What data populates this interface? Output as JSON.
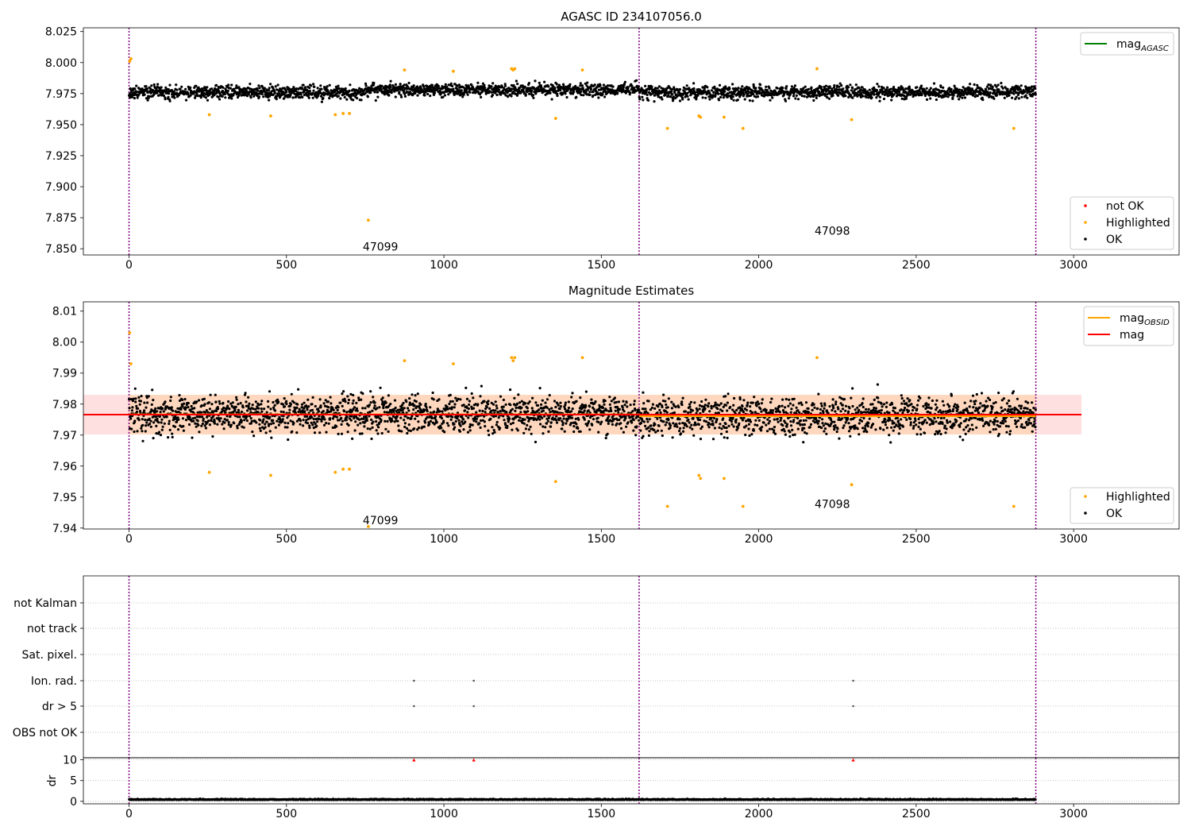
{
  "chart_data": [
    {
      "type": "scatter",
      "title": "AGASC ID 234107056.0",
      "xlim": [
        -145,
        3335
      ],
      "ylim": [
        7.845,
        8.028
      ],
      "x_ticks": [
        0,
        500,
        1000,
        1500,
        2000,
        2500,
        3000
      ],
      "y_ticks": [
        7.85,
        7.875,
        7.9,
        7.925,
        7.95,
        7.975,
        8.0,
        8.025
      ],
      "y_tick_labels": [
        "7.850",
        "7.875",
        "7.900",
        "7.925",
        "7.950",
        "7.975",
        "8.000",
        "8.025"
      ],
      "grid": false,
      "vlines": [
        0,
        1620,
        2880
      ],
      "obsid_labels": [
        {
          "text": "47099",
          "x": 750,
          "y": 7.851
        },
        {
          "text": "47098",
          "x": 2185,
          "y": 7.864
        }
      ],
      "legend_top": {
        "position": "top-right",
        "entries": [
          {
            "label": "mag",
            "sub": "AGASC",
            "color": "#008000",
            "kind": "line"
          }
        ]
      },
      "legend_bottom": {
        "position": "bottom-right",
        "entries": [
          {
            "label": "not OK",
            "color": "#ff0000",
            "kind": "point"
          },
          {
            "label": "Highlighted",
            "color": "#ffa500",
            "kind": "point"
          },
          {
            "label": "OK",
            "color": "#000000",
            "kind": "point"
          }
        ]
      },
      "series": [
        {
          "name": "OK",
          "color": "#000000",
          "points": "dense black point cloud near 7.976 (spread about 7.963–7.993) over x = 0–2880",
          "segments": [
            [
              0,
              760,
              7.976
            ],
            [
              760,
              1620,
              7.978
            ],
            [
              1620,
              2880,
              7.976
            ]
          ]
        },
        {
          "name": "Highlighted",
          "color": "#ffa500",
          "x": [
            2,
            6,
            255,
            450,
            655,
            680,
            700,
            760,
            875,
            1030,
            1215,
            1220,
            1225,
            1355,
            1440,
            1710,
            1810,
            1815,
            1890,
            1950,
            2185,
            2295,
            2810
          ],
          "y": [
            8.001,
            8.003,
            7.958,
            7.957,
            7.958,
            7.959,
            7.959,
            7.873,
            7.994,
            7.993,
            7.995,
            7.994,
            7.995,
            7.955,
            7.994,
            7.947,
            7.957,
            7.956,
            7.956,
            7.947,
            7.995,
            7.954,
            7.947
          ]
        }
      ]
    },
    {
      "type": "scatter",
      "title": "Magnitude Estimates",
      "xlim": [
        -145,
        3335
      ],
      "ylim": [
        7.9397,
        8.013
      ],
      "x_ticks": [
        0,
        500,
        1000,
        1500,
        2000,
        2500,
        3000
      ],
      "y_ticks": [
        7.94,
        7.95,
        7.96,
        7.97,
        7.98,
        7.99,
        8.0,
        8.01
      ],
      "y_tick_labels": [
        "7.94",
        "7.95",
        "7.96",
        "7.97",
        "7.98",
        "7.99",
        "8.00",
        "8.01"
      ],
      "grid": false,
      "vlines": [
        0,
        1620,
        2880
      ],
      "obsid_labels": [
        {
          "text": "47099",
          "x": 750,
          "y": 7.9423
        },
        {
          "text": "47098",
          "x": 2185,
          "y": 7.9475
        }
      ],
      "mag_line": {
        "label": "mag",
        "value": 7.9766,
        "band": [
          7.9702,
          7.983
        ],
        "x_range": [
          -145,
          3025
        ],
        "color": "#ff0000"
      },
      "obsid_segments": [
        {
          "x": [
            0,
            1620
          ],
          "mag": 7.9767
        },
        {
          "x": [
            1620,
            2880
          ],
          "mag": 7.9761
        }
      ],
      "legend_top": {
        "position": "top-right",
        "entries": [
          {
            "label": "mag",
            "sub": "OBSID",
            "color": "#ffa500",
            "kind": "line"
          },
          {
            "label": "mag",
            "color": "#ff0000",
            "kind": "line"
          }
        ]
      },
      "legend_bottom": {
        "position": "bottom-right",
        "entries": [
          {
            "label": "Highlighted",
            "color": "#ffa500",
            "kind": "point"
          },
          {
            "label": "OK",
            "color": "#000000",
            "kind": "point"
          }
        ]
      },
      "series": [
        {
          "name": "OK",
          "color": "#000000",
          "points": "dense black point cloud around 7.976 (spread about 7.958–7.993) over x = 0–2880"
        },
        {
          "name": "Highlighted",
          "color": "#ffa500",
          "x": [
            2,
            6,
            255,
            450,
            655,
            680,
            700,
            760,
            875,
            1030,
            1215,
            1220,
            1225,
            1355,
            1440,
            1710,
            1810,
            1815,
            1890,
            1950,
            2185,
            2295,
            2810
          ],
          "y": [
            8.003,
            7.993,
            7.958,
            7.957,
            7.958,
            7.959,
            7.959,
            7.9405,
            7.994,
            7.993,
            7.995,
            7.994,
            7.995,
            7.955,
            7.995,
            7.947,
            7.957,
            7.956,
            7.956,
            7.947,
            7.995,
            7.954,
            7.947
          ]
        }
      ]
    },
    {
      "type": "scatter",
      "title": "",
      "xlim": [
        -145,
        3335
      ],
      "x_ticks": [
        0,
        500,
        1000,
        1500,
        2000,
        2500,
        3000
      ],
      "categories": [
        "not Kalman",
        "not track",
        "Sat. pixel.",
        "Ion. rad.",
        "dr > 5",
        "OBS not OK"
      ],
      "grid": "dotted horizontal",
      "vlines": [
        0,
        1620,
        2880
      ],
      "flags": [
        {
          "category": "Ion. rad.",
          "x": [
            905,
            1095,
            2300
          ]
        },
        {
          "category": "dr > 5",
          "x": [
            905,
            1095,
            2300
          ]
        }
      ]
    },
    {
      "type": "scatter",
      "title": "",
      "ylabel": "dr",
      "xlim": [
        -145,
        3335
      ],
      "ylim": [
        -0.6,
        10.5
      ],
      "x_ticks": [
        0,
        500,
        1000,
        1500,
        2000,
        2500,
        3000
      ],
      "y_ticks": [
        0,
        5,
        10
      ],
      "y_tick_labels": [
        "0",
        "5",
        "10"
      ],
      "grid": "dotted horizontal",
      "vlines": [
        0,
        1620,
        2880
      ],
      "capped_points": {
        "color": "#ff0000",
        "x": [
          905,
          1095,
          2300
        ],
        "y": [
          10,
          10,
          10
        ]
      },
      "series": [
        {
          "name": "dr",
          "color": "#000000",
          "points": "black points near 0.4 (spread about 0–1.2) over x = 0–2880"
        }
      ]
    }
  ]
}
